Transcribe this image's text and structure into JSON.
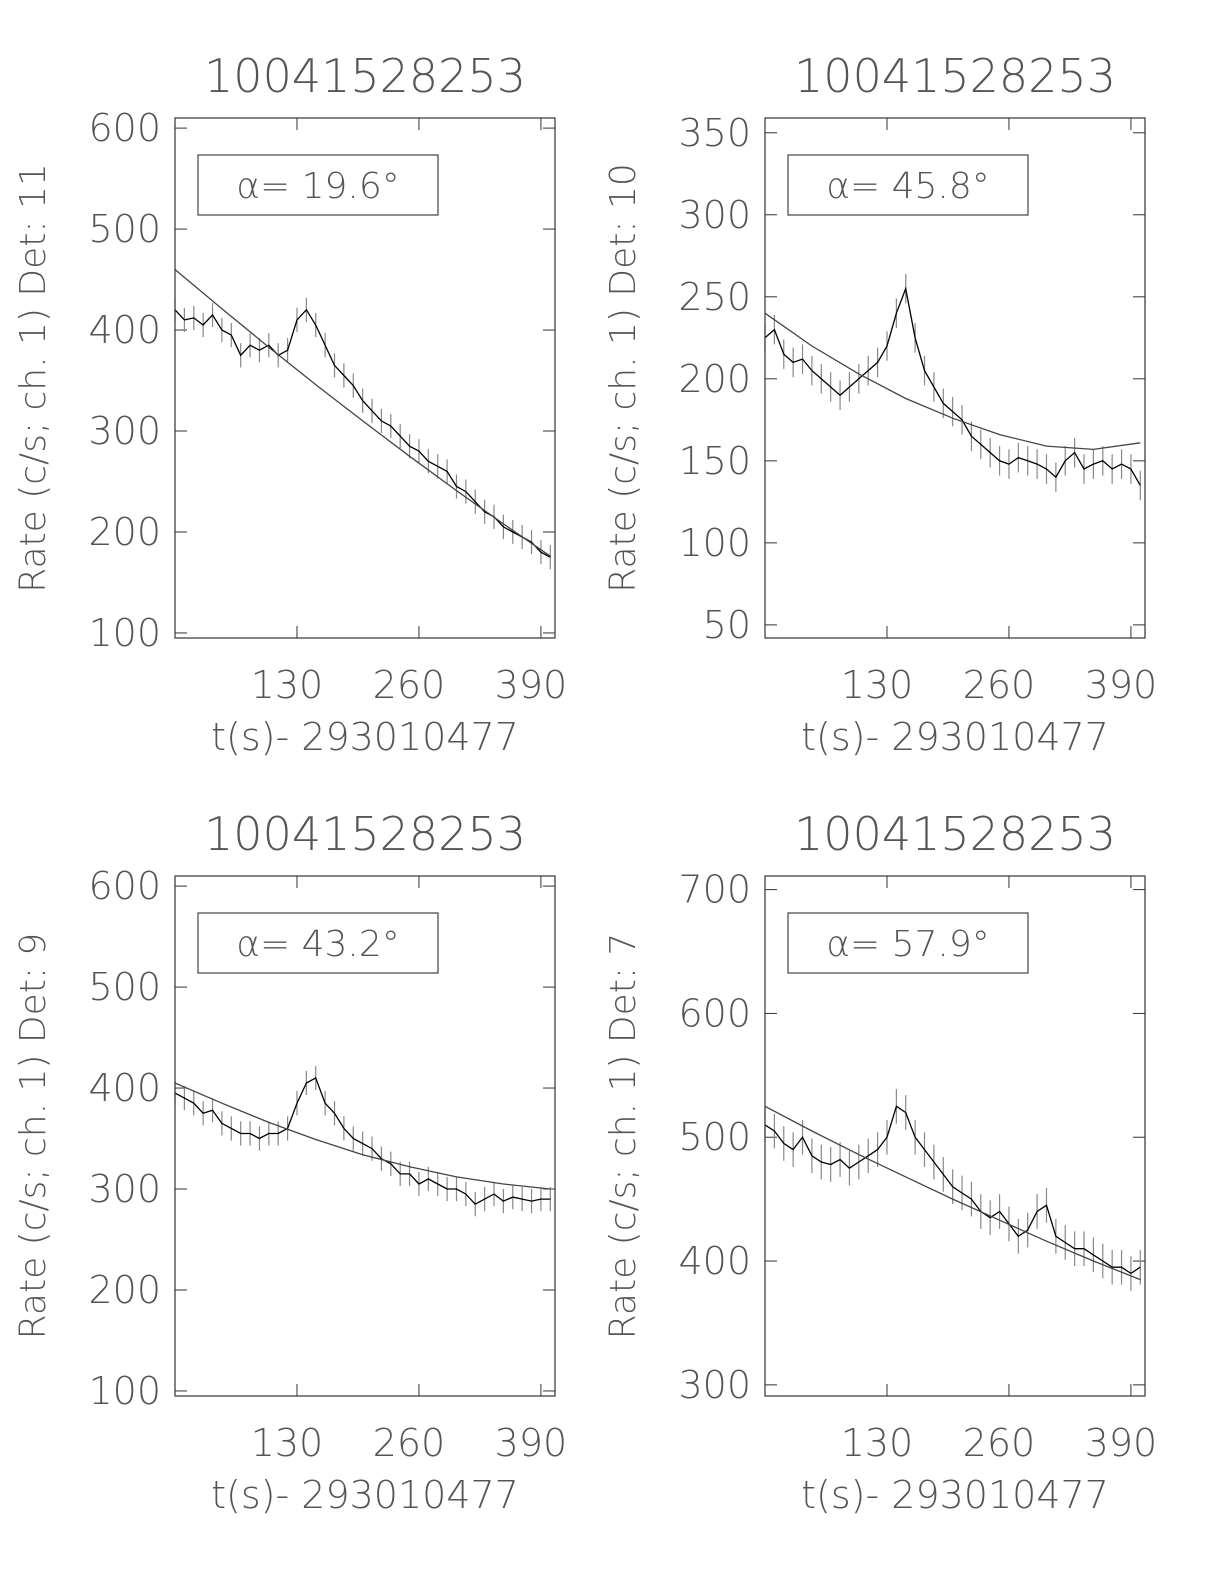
{
  "chart_data": [
    {
      "type": "line",
      "title": "10041528253",
      "xlabel": "t(s)- 293010477",
      "ylabel": "Rate (c/s; ch. 1) Det: 11",
      "annotation": "α= 19.6°",
      "xlim": [
        0,
        405
      ],
      "ylim": [
        95,
        610
      ],
      "xticks": [
        130,
        260,
        390
      ],
      "yticks": [
        100,
        200,
        300,
        400,
        500,
        600
      ],
      "series": [
        {
          "color": "#000000",
          "error_color": "#888888",
          "x": [
            0,
            10,
            20,
            30,
            40,
            50,
            60,
            70,
            80,
            90,
            100,
            110,
            120,
            130,
            140,
            150,
            160,
            170,
            180,
            190,
            200,
            210,
            220,
            230,
            240,
            250,
            260,
            270,
            280,
            290,
            300,
            310,
            320,
            330,
            340,
            350,
            360,
            370,
            380,
            390,
            400
          ],
          "values": [
            420,
            410,
            412,
            405,
            415,
            400,
            395,
            375,
            385,
            380,
            385,
            375,
            380,
            410,
            420,
            405,
            385,
            365,
            355,
            345,
            330,
            320,
            310,
            305,
            295,
            285,
            280,
            270,
            265,
            260,
            245,
            240,
            230,
            220,
            215,
            205,
            200,
            195,
            190,
            180,
            175
          ],
          "errors": [
            12,
            12,
            12,
            12,
            12,
            12,
            12,
            12,
            12,
            12,
            12,
            12,
            12,
            12,
            12,
            12,
            12,
            12,
            12,
            12,
            12,
            12,
            12,
            12,
            12,
            12,
            12,
            12,
            12,
            12,
            12,
            12,
            12,
            12,
            12,
            12,
            12,
            12,
            12,
            12,
            12
          ]
        },
        {
          "color": "#444444",
          "x": [
            0,
            50,
            100,
            150,
            200,
            250,
            300,
            350,
            400
          ],
          "values": [
            460,
            421,
            383,
            346,
            310,
            275,
            241,
            208,
            176
          ]
        }
      ]
    },
    {
      "type": "line",
      "title": "10041528253",
      "xlabel": "t(s)- 293010477",
      "ylabel": "Rate (c/s; ch. 1) Det: 10",
      "annotation": "α= 45.8°",
      "xlim": [
        0,
        405
      ],
      "ylim": [
        42,
        359
      ],
      "xticks": [
        130,
        260,
        390
      ],
      "yticks": [
        50,
        100,
        150,
        200,
        250,
        300,
        350
      ],
      "series": [
        {
          "color": "#000000",
          "error_color": "#888888",
          "x": [
            0,
            10,
            20,
            30,
            40,
            50,
            60,
            70,
            80,
            90,
            100,
            110,
            120,
            130,
            140,
            150,
            160,
            170,
            180,
            190,
            200,
            210,
            220,
            230,
            240,
            250,
            260,
            270,
            280,
            290,
            300,
            310,
            320,
            330,
            340,
            350,
            360,
            370,
            380,
            390,
            400
          ],
          "values": [
            225,
            230,
            215,
            210,
            212,
            205,
            200,
            195,
            190,
            195,
            200,
            205,
            210,
            220,
            240,
            255,
            225,
            205,
            195,
            185,
            180,
            175,
            165,
            160,
            155,
            150,
            148,
            152,
            150,
            148,
            145,
            140,
            150,
            155,
            145,
            148,
            150,
            145,
            148,
            145,
            135
          ],
          "errors": [
            9,
            9,
            9,
            9,
            9,
            9,
            9,
            9,
            9,
            9,
            9,
            9,
            9,
            9,
            9,
            9,
            9,
            9,
            9,
            9,
            9,
            9,
            9,
            9,
            9,
            9,
            9,
            9,
            9,
            9,
            9,
            9,
            9,
            9,
            9,
            9,
            9,
            9,
            9,
            9,
            9
          ]
        },
        {
          "color": "#444444",
          "x": [
            0,
            50,
            100,
            150,
            200,
            250,
            300,
            350,
            400
          ],
          "values": [
            240,
            220,
            203,
            188,
            176,
            166,
            159,
            157,
            161
          ]
        }
      ]
    },
    {
      "type": "line",
      "title": "10041528253",
      "xlabel": "t(s)- 293010477",
      "ylabel": "Rate (c/s; ch. 1) Det: 9",
      "annotation": "α= 43.2°",
      "xlim": [
        0,
        405
      ],
      "ylim": [
        95,
        610
      ],
      "xticks": [
        130,
        260,
        390
      ],
      "yticks": [
        100,
        200,
        300,
        400,
        500,
        600
      ],
      "series": [
        {
          "color": "#000000",
          "error_color": "#888888",
          "x": [
            0,
            10,
            20,
            30,
            40,
            50,
            60,
            70,
            80,
            90,
            100,
            110,
            120,
            130,
            140,
            150,
            160,
            170,
            180,
            190,
            200,
            210,
            220,
            230,
            240,
            250,
            260,
            270,
            280,
            290,
            300,
            310,
            320,
            330,
            340,
            350,
            360,
            370,
            380,
            390,
            400
          ],
          "values": [
            395,
            390,
            385,
            375,
            378,
            365,
            360,
            355,
            355,
            350,
            355,
            355,
            360,
            385,
            405,
            410,
            385,
            375,
            360,
            350,
            345,
            340,
            330,
            325,
            315,
            315,
            305,
            310,
            305,
            300,
            300,
            295,
            285,
            290,
            295,
            288,
            292,
            290,
            288,
            290,
            290
          ],
          "errors": [
            12,
            12,
            12,
            12,
            12,
            12,
            12,
            12,
            12,
            12,
            12,
            12,
            12,
            12,
            12,
            12,
            12,
            12,
            12,
            12,
            12,
            12,
            12,
            12,
            12,
            12,
            12,
            12,
            12,
            12,
            12,
            12,
            12,
            12,
            12,
            12,
            12,
            12,
            12,
            12,
            12
          ]
        },
        {
          "color": "#444444",
          "x": [
            0,
            50,
            100,
            150,
            200,
            250,
            300,
            350,
            400
          ],
          "values": [
            405,
            385,
            366,
            349,
            334,
            322,
            312,
            305,
            300
          ]
        }
      ]
    },
    {
      "type": "line",
      "title": "10041528253",
      "xlabel": "t(s)- 293010477",
      "ylabel": "Rate (c/s; ch. 1) Det: 7",
      "annotation": "α= 57.9°",
      "xlim": [
        0,
        405
      ],
      "ylim": [
        291,
        711
      ],
      "xticks": [
        130,
        260,
        390
      ],
      "yticks": [
        300,
        400,
        500,
        600,
        700
      ],
      "series": [
        {
          "color": "#000000",
          "error_color": "#888888",
          "x": [
            0,
            10,
            20,
            30,
            40,
            50,
            60,
            70,
            80,
            90,
            100,
            110,
            120,
            130,
            140,
            150,
            160,
            170,
            180,
            190,
            200,
            210,
            220,
            230,
            240,
            250,
            260,
            270,
            280,
            290,
            300,
            310,
            320,
            330,
            340,
            350,
            360,
            370,
            380,
            390,
            400
          ],
          "values": [
            510,
            505,
            495,
            490,
            500,
            485,
            480,
            478,
            482,
            475,
            480,
            485,
            490,
            500,
            525,
            520,
            500,
            490,
            480,
            470,
            460,
            455,
            450,
            440,
            435,
            440,
            430,
            420,
            425,
            440,
            445,
            420,
            415,
            410,
            410,
            405,
            400,
            395,
            395,
            390,
            395
          ],
          "errors": [
            14,
            14,
            14,
            14,
            14,
            14,
            14,
            14,
            14,
            14,
            14,
            14,
            14,
            14,
            14,
            14,
            14,
            14,
            14,
            14,
            14,
            14,
            14,
            14,
            14,
            14,
            14,
            14,
            14,
            14,
            14,
            14,
            14,
            14,
            14,
            14,
            14,
            14,
            14,
            14,
            14
          ]
        },
        {
          "color": "#444444",
          "x": [
            0,
            50,
            100,
            150,
            200,
            250,
            300,
            350,
            400
          ],
          "values": [
            525,
            505,
            486,
            468,
            450,
            433,
            416,
            400,
            385
          ]
        }
      ]
    }
  ]
}
